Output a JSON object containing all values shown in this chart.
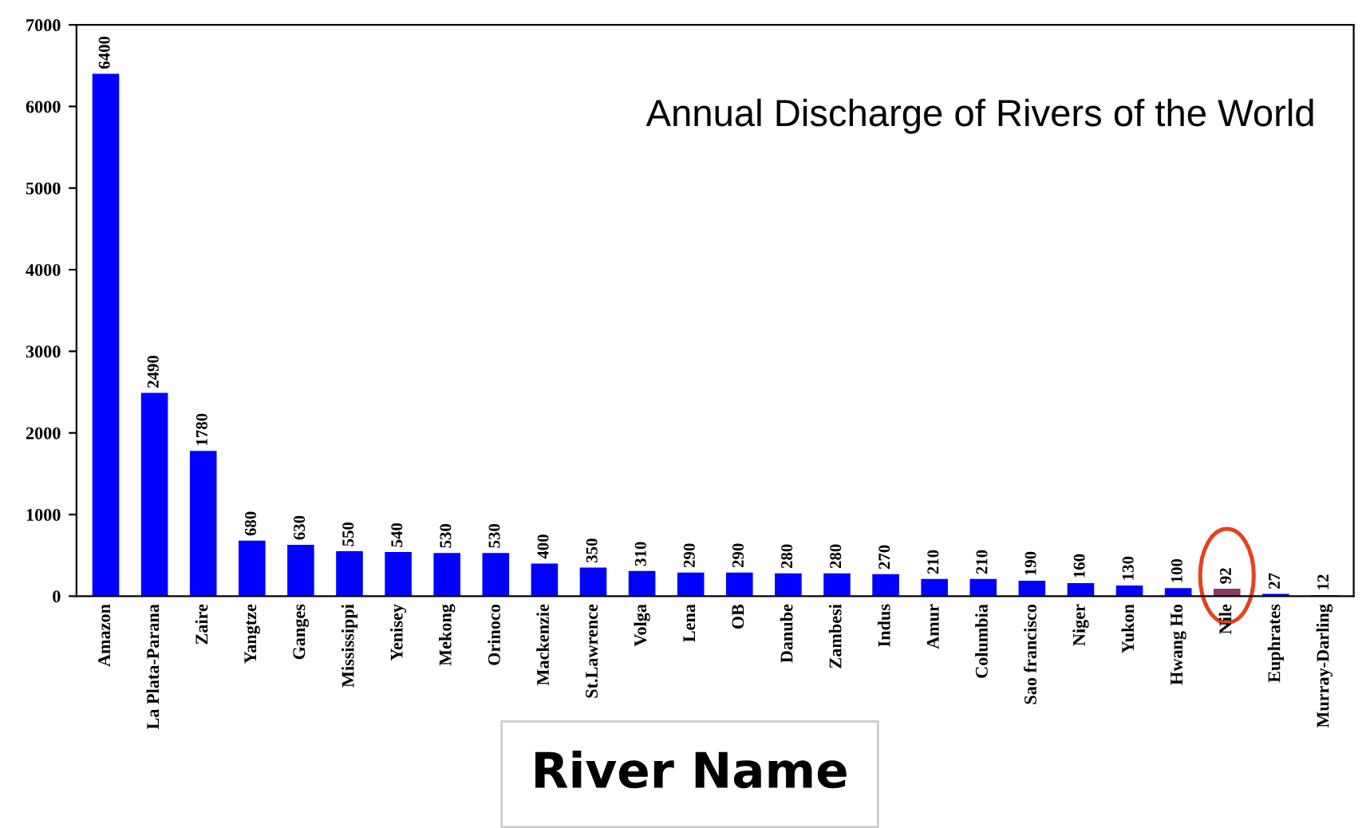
{
  "chart_data": {
    "type": "bar",
    "title": "Annual Discharge of Rivers of the World",
    "xlabel": "River Name",
    "categories": [
      "Amazon",
      "La Plata-Parana",
      "Zaire",
      "Yangtze",
      "Ganges",
      "Mississippi",
      "Yenisey",
      "Mekong",
      "Orinoco",
      "Mackenzie",
      "St.Lawrence",
      "Volga",
      "Lena",
      "OB",
      "Danube",
      "Zambesi",
      "Indus",
      "Amur",
      "Columbia",
      "Sao francisco",
      "Niger",
      "Yukon",
      "Hwang Ho",
      "Nile",
      "Euphrates",
      "Murray-Darling"
    ],
    "values": [
      6400,
      2490,
      1780,
      680,
      630,
      550,
      540,
      530,
      530,
      400,
      350,
      310,
      290,
      290,
      280,
      280,
      270,
      210,
      210,
      190,
      160,
      130,
      100,
      92,
      27,
      12
    ],
    "colors": [
      "#0000ff",
      "#0000ff",
      "#0000ff",
      "#0000ff",
      "#0000ff",
      "#0000ff",
      "#0000ff",
      "#0000ff",
      "#0000ff",
      "#0000ff",
      "#0000ff",
      "#0000ff",
      "#0000ff",
      "#0000ff",
      "#0000ff",
      "#0000ff",
      "#0000ff",
      "#0000ff",
      "#0000ff",
      "#0000ff",
      "#0000ff",
      "#0000ff",
      "#0000ff",
      "#8b3a62",
      "#0000ff",
      "#0000ff"
    ],
    "ylim": [
      0,
      7000
    ],
    "yticks": [
      0,
      1000,
      2000,
      3000,
      4000,
      5000,
      6000,
      7000
    ],
    "data_labels": true,
    "grid": false,
    "legend": false
  }
}
